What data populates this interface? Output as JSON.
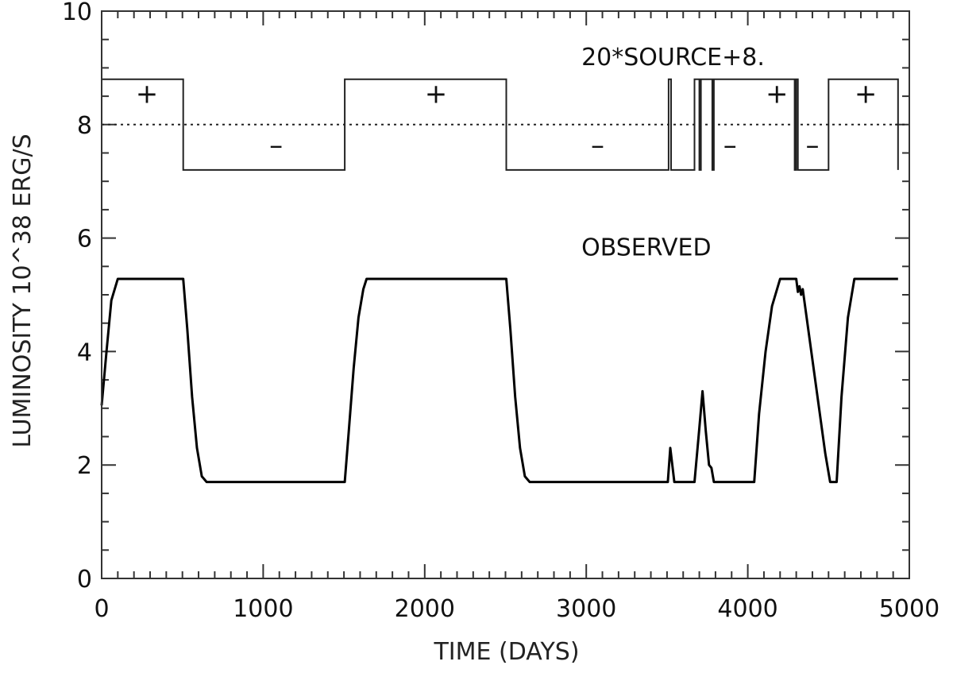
{
  "chart_data": {
    "type": "line",
    "xlabel": "TIME (DAYS)",
    "ylabel": "LUMINOSITY 10^38 ERG/S",
    "xlim": [
      0,
      5000
    ],
    "ylim": [
      0,
      10
    ],
    "x_major_ticks": [
      0,
      1000,
      2000,
      3000,
      4000,
      5000
    ],
    "x_minor_step": 100,
    "y_major_ticks": [
      0,
      2,
      4,
      6,
      8,
      10
    ],
    "y_minor_step": 0.5,
    "x_tick_labels": [
      "0",
      "1000",
      "2000",
      "3000",
      "4000",
      "5000"
    ],
    "y_tick_labels": [
      "0",
      "2",
      "4",
      "6",
      "8",
      "10"
    ],
    "grid": false,
    "reference_line": {
      "y": 8,
      "style": "dotted"
    },
    "annotations": [
      {
        "text": "20*SOURCE+8.",
        "x": 2970,
        "y": 9.2
      },
      {
        "text": "OBSERVED",
        "x": 2970,
        "y": 5.85
      }
    ],
    "sign_labels": [
      {
        "text": "+",
        "x": 280,
        "y": 8.55
      },
      {
        "text": "–",
        "x": 1080,
        "y": 7.65
      },
      {
        "text": "+",
        "x": 2070,
        "y": 8.55
      },
      {
        "text": "–",
        "x": 3070,
        "y": 7.65
      },
      {
        "text": "–",
        "x": 3890,
        "y": 7.65
      },
      {
        "text": "+",
        "x": 4180,
        "y": 8.55
      },
      {
        "text": "–",
        "x": 4400,
        "y": 7.65
      },
      {
        "text": "+",
        "x": 4730,
        "y": 8.55
      }
    ],
    "series": [
      {
        "x": [
          0,
          100,
          100,
          505,
          505,
          1505,
          1505,
          2505,
          2505,
          3510,
          3510,
          3525,
          3525,
          3670,
          3670,
          3700,
          3700,
          3710,
          3710,
          3780,
          3780,
          3790,
          3790,
          4045,
          4045,
          4290,
          4290,
          4300,
          4300,
          4310,
          4310,
          4320,
          4320,
          4500,
          4500,
          4930,
          4930
        ],
        "y": [
          8.8,
          8.8,
          8.8,
          8.8,
          7.2,
          7.2,
          8.8,
          8.8,
          7.2,
          7.2,
          8.8,
          8.8,
          7.2,
          7.2,
          8.8,
          8.8,
          7.2,
          7.2,
          8.8,
          8.8,
          7.2,
          7.2,
          8.8,
          8.8,
          8.8,
          8.8,
          7.2,
          7.2,
          8.8,
          8.8,
          7.2,
          7.2,
          7.2,
          7.2,
          8.8,
          8.8,
          7.2
        ]
      },
      {
        "x": [
          0,
          30,
          60,
          100,
          505,
          530,
          560,
          590,
          620,
          650,
          1505,
          1530,
          1560,
          1590,
          1620,
          1640,
          2505,
          2530,
          2560,
          2590,
          2620,
          2650,
          3505,
          3520,
          3545,
          3670,
          3700,
          3720,
          3740,
          3760,
          3775,
          3790,
          4040,
          4070,
          4110,
          4150,
          4200,
          4300,
          4310,
          4320,
          4330,
          4340,
          4480,
          4510,
          4520,
          4550,
          4580,
          4620,
          4660,
          4930
        ],
        "y": [
          3.05,
          4.0,
          4.9,
          5.28,
          5.28,
          4.4,
          3.2,
          2.3,
          1.8,
          1.7,
          1.7,
          2.6,
          3.7,
          4.6,
          5.1,
          5.28,
          5.28,
          4.4,
          3.2,
          2.3,
          1.8,
          1.7,
          1.7,
          2.3,
          1.7,
          1.7,
          2.65,
          3.3,
          2.6,
          2.0,
          1.95,
          1.7,
          1.7,
          2.9,
          4.0,
          4.8,
          5.28,
          5.28,
          5.05,
          5.15,
          5.0,
          5.1,
          2.2,
          1.7,
          1.7,
          1.7,
          3.2,
          4.6,
          5.28,
          5.28
        ]
      }
    ]
  }
}
